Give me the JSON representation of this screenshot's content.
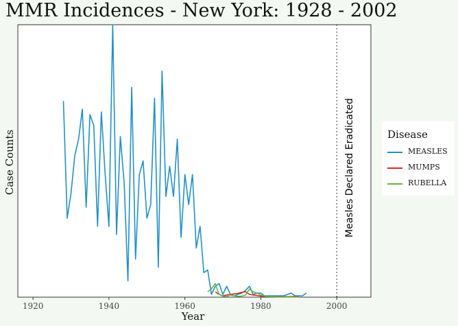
{
  "chart_data": {
    "type": "line",
    "title": "MMR Incidences - New York: 1928 - 2002",
    "xlabel": "Year",
    "ylabel": "Case Counts",
    "xlim": [
      1916,
      2009
    ],
    "ylim": [
      0,
      1
    ],
    "x_ticks": [
      "1920",
      "1940",
      "1960",
      "1980",
      "2000"
    ],
    "y_tick_labels": false,
    "grid": false,
    "legend": {
      "title": "Disease",
      "position": "right"
    },
    "annotation": {
      "x": 2000,
      "text": "Measles Declared Eradicated",
      "style": "dotted-vline"
    },
    "series": [
      {
        "name": "MEASLES",
        "color": "#1f8fc9",
        "x": [
          1928,
          1929,
          1930,
          1931,
          1932,
          1933,
          1934,
          1935,
          1936,
          1937,
          1938,
          1939,
          1940,
          1941,
          1942,
          1943,
          1944,
          1945,
          1946,
          1947,
          1948,
          1949,
          1950,
          1951,
          1952,
          1953,
          1954,
          1955,
          1956,
          1957,
          1958,
          1959,
          1960,
          1961,
          1962,
          1963,
          1964,
          1965,
          1966,
          1967,
          1968,
          1969,
          1970,
          1971,
          1972,
          1973,
          1974,
          1975,
          1976,
          1977,
          1978,
          1979,
          1980,
          1981,
          1982,
          1983,
          1984,
          1985,
          1986,
          1987,
          1988,
          1989,
          1990,
          1991,
          1992
        ],
        "y": [
          0.72,
          0.29,
          0.38,
          0.52,
          0.58,
          0.69,
          0.33,
          0.67,
          0.63,
          0.26,
          0.68,
          0.45,
          0.26,
          1.0,
          0.23,
          0.59,
          0.42,
          0.06,
          0.77,
          0.14,
          0.45,
          0.5,
          0.29,
          0.34,
          0.73,
          0.11,
          0.83,
          0.37,
          0.48,
          0.37,
          0.58,
          0.22,
          0.45,
          0.34,
          0.45,
          0.18,
          0.26,
          0.09,
          0.1,
          0.01,
          0.04,
          0.05,
          0.01,
          0.04,
          0.01,
          0.005,
          0.01,
          0.015,
          0.025,
          0.04,
          0.01,
          0.015,
          0.015,
          0.005,
          0.005,
          0.005,
          0.005,
          0.005,
          0.005,
          0.01,
          0.015,
          0.005,
          0.005,
          0.005,
          0.015
        ]
      },
      {
        "name": "MUMPS",
        "color": "#e8231f",
        "x": [
          1968,
          1969,
          1970,
          1971,
          1972,
          1973,
          1974,
          1975,
          1976,
          1977,
          1978,
          1979,
          1980,
          1981,
          1982,
          1983,
          1984,
          1985,
          1986,
          1987,
          1988,
          1989,
          1990
        ],
        "y": [
          0.02,
          0.01,
          0.005,
          0.008,
          0.01,
          0.012,
          0.014,
          0.018,
          0.02,
          0.01,
          0.008,
          0.006,
          0.004,
          0.003,
          0.003,
          0.002,
          0.002,
          0.002,
          0.002,
          0.002,
          0.002,
          0.003,
          0.002
        ]
      },
      {
        "name": "RUBELLA",
        "color": "#64b345",
        "x": [
          1966,
          1967,
          1968,
          1969,
          1970,
          1971,
          1972,
          1973,
          1974,
          1975,
          1976,
          1977,
          1978,
          1979,
          1980,
          1981,
          1982,
          1983,
          1984,
          1985,
          1986,
          1987,
          1988,
          1989,
          1990
        ],
        "y": [
          0.02,
          0.03,
          0.05,
          0.01,
          0.004,
          0.002,
          0.008,
          0.005,
          0.003,
          0.004,
          0.008,
          0.03,
          0.02,
          0.015,
          0.008,
          0.004,
          0.002,
          0.002,
          0.001,
          0.001,
          0.001,
          0.001,
          0.001,
          0.001,
          0.001
        ]
      }
    ]
  }
}
